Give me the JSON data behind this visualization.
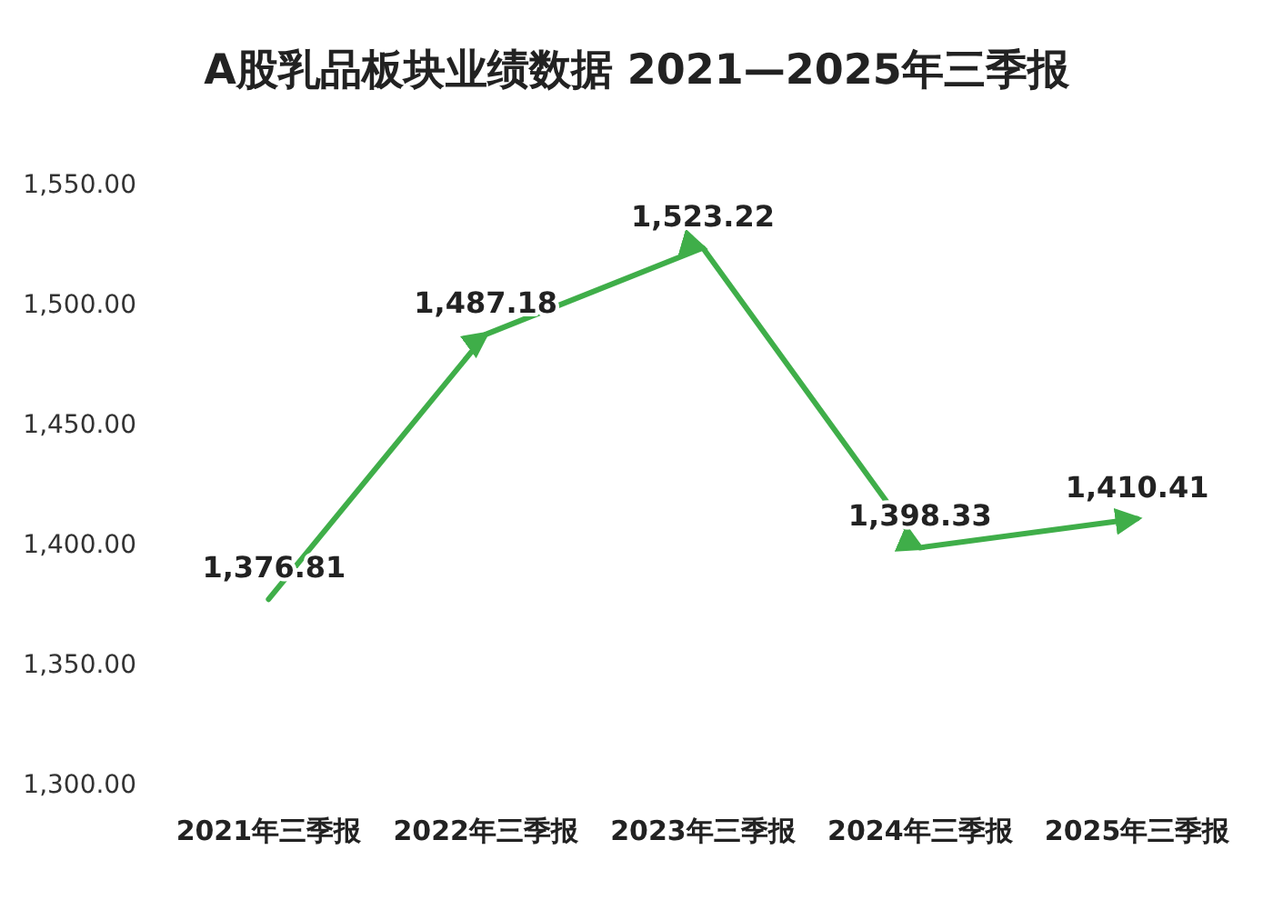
{
  "chart_data": {
    "type": "line",
    "title": "A股乳品板块业绩数据 2021—2025年三季报",
    "categories": [
      "2021年三季报",
      "2022年三季报",
      "2023年三季报",
      "2024年三季报",
      "2025年三季报"
    ],
    "series": [
      {
        "color": "#3fae49",
        "values": [
          1376.81,
          1487.18,
          1523.22,
          1398.33,
          1410.41
        ],
        "value_labels": [
          "1,376.81",
          "1,487.18",
          "1,523.22",
          "1,398.33",
          "1,410.41"
        ]
      }
    ],
    "ylim": [
      1300,
      1550
    ],
    "yticks": [
      {
        "value": 1300,
        "label": "1,300.00"
      },
      {
        "value": 1350,
        "label": "1,350.00"
      },
      {
        "value": 1400,
        "label": "1,400.00"
      },
      {
        "value": 1450,
        "label": "1,450.00"
      },
      {
        "value": 1500,
        "label": "1,500.00"
      },
      {
        "value": 1550,
        "label": "1,550.00"
      }
    ],
    "marker": "none",
    "line_style": "solid",
    "grid": false
  }
}
